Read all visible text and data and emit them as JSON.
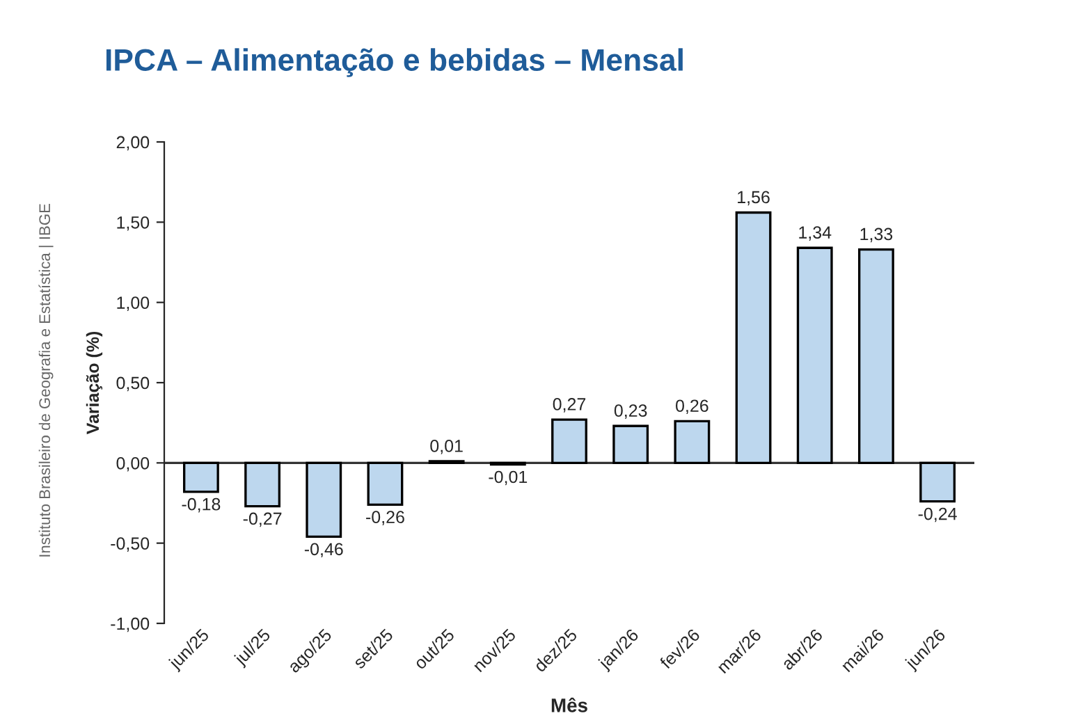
{
  "chart_data": {
    "type": "bar",
    "title": "IPCA – Alimentação e bebidas – Mensal",
    "xlabel": "Mês",
    "ylabel": "Variação (%)",
    "annotations": [
      "Instituto Brasileiro de Geografia e Estatística | IBGE"
    ],
    "categories": [
      "jun/25",
      "jul/25",
      "ago/25",
      "set/25",
      "out/25",
      "nov/25",
      "dez/25",
      "jan/26",
      "fev/26",
      "mar/26",
      "abr/26",
      "mai/26",
      "jun/26"
    ],
    "values": [
      -0.18,
      -0.27,
      -0.46,
      -0.26,
      0.01,
      -0.01,
      0.27,
      0.23,
      0.26,
      1.56,
      1.34,
      1.33,
      -0.24
    ],
    "value_labels": [
      "-0,18",
      "-0,27",
      "-0,46",
      "-0,26",
      "0,01",
      "-0,01",
      "0,27",
      "0,23",
      "0,26",
      "1,56",
      "1,34",
      "1,33",
      "-0,24"
    ],
    "color": "#bdd7ee",
    "ylim": [
      -1,
      2
    ],
    "yticks": [
      {
        "value": -1,
        "label": "-1,00"
      },
      {
        "value": -0.5,
        "label": "-0,50"
      },
      {
        "value": 0,
        "label": "0,00"
      },
      {
        "value": 0.5,
        "label": "0,50"
      },
      {
        "value": 1,
        "label": "1,00"
      },
      {
        "value": 1.5,
        "label": "1,50"
      },
      {
        "value": 2,
        "label": "2,00"
      }
    ],
    "ref_lines": [
      {
        "axis": "y",
        "value": 0,
        "color": "#333333"
      }
    ],
    "grid": false,
    "legend": false
  }
}
